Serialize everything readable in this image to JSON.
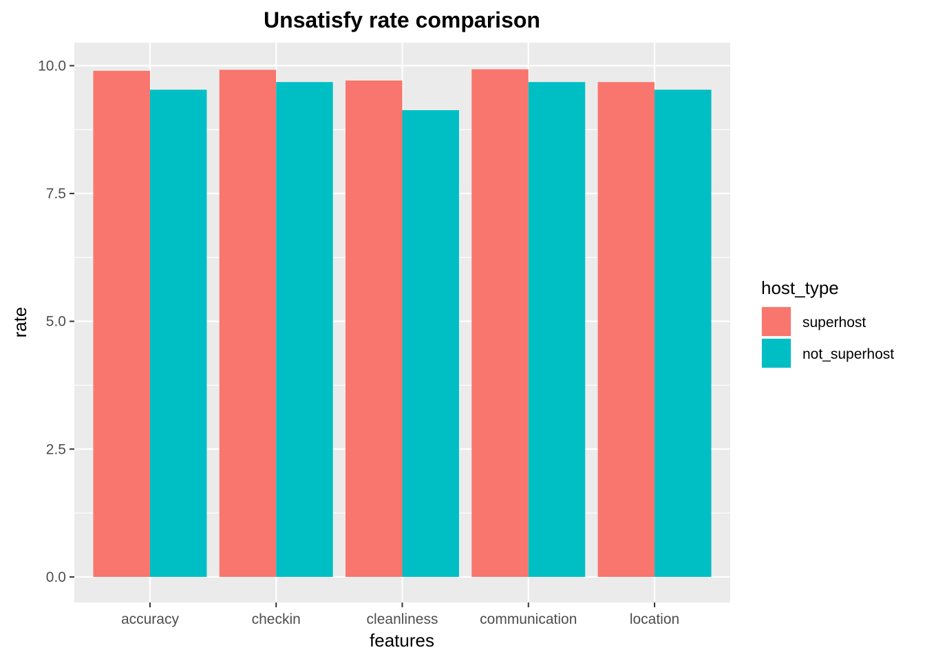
{
  "chart_data": {
    "type": "bar",
    "title": "Unsatisfy rate comparison",
    "xlabel": "features",
    "ylabel": "rate",
    "categories": [
      "accuracy",
      "checkin",
      "cleanliness",
      "communication",
      "location"
    ],
    "series": [
      {
        "name": "superhost",
        "color": "#F8766D",
        "values": [
          9.9,
          9.92,
          9.71,
          9.93,
          9.68
        ]
      },
      {
        "name": "not_superhost",
        "color": "#00BFC4",
        "values": [
          9.53,
          9.68,
          9.13,
          9.68,
          9.53
        ]
      }
    ],
    "ylim": [
      -0.5,
      10.45
    ],
    "yticks": [
      0,
      2.5,
      5,
      7.5,
      10
    ],
    "ytick_labels": [
      "0.0",
      "2.5",
      "5.0",
      "7.5",
      "10.0"
    ],
    "legend": {
      "title": "host_type",
      "position": "right"
    },
    "grid": true,
    "panel_background": "#EBEBEB"
  }
}
